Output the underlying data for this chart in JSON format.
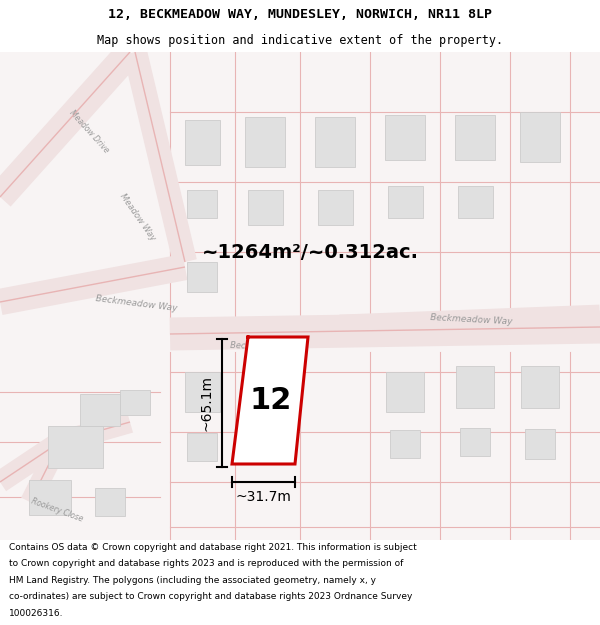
{
  "title_line1": "12, BECKMEADOW WAY, MUNDESLEY, NORWICH, NR11 8LP",
  "title_line2": "Map shows position and indicative extent of the property.",
  "footer_text": "Contains OS data © Crown copyright and database right 2021. This information is subject to Crown copyright and database rights 2023 and is reproduced with the permission of HM Land Registry. The polygons (including the associated geometry, namely x, y co-ordinates) are subject to Crown copyright and database rights 2023 Ordnance Survey 100026316.",
  "area_label": "~1264m²/~0.312ac.",
  "plot_number": "12",
  "dim_height": "~65.1m",
  "dim_width": "~31.7m",
  "map_bg": "#f7f0f0",
  "plot_outline_color": "#cc0000",
  "plot_fill_color": "#ffffff",
  "road_fill": "#f0e0e0",
  "road_outline": "#e8b8b8",
  "building_fill": "#e0e0e0",
  "building_edge": "#cccccc",
  "dim_line_color": "#000000",
  "road_label_color": "#999999",
  "title_fontsize": 9.5,
  "subtitle_fontsize": 8.5,
  "footer_fontsize": 6.5
}
